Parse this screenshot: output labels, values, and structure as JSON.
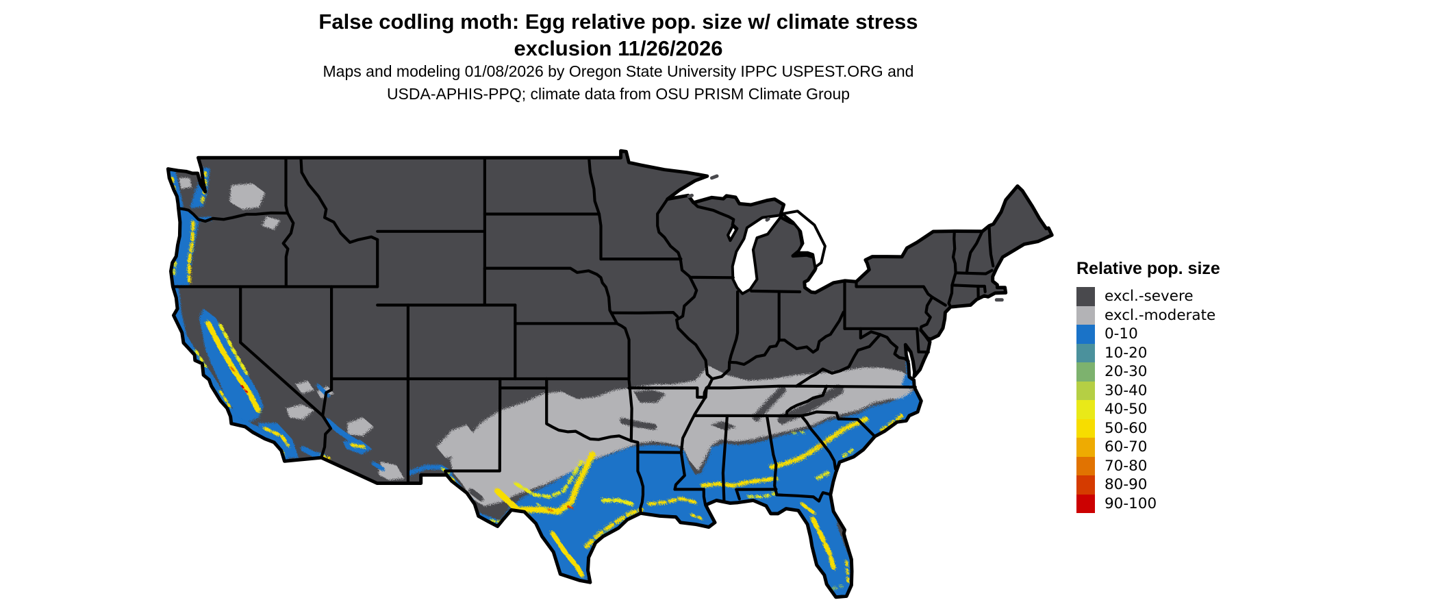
{
  "header": {
    "title_line1": "False codling moth: Egg relative pop. size w/ climate stress",
    "title_line2": "exclusion 11/26/2026",
    "subtitle_line1": "Maps and modeling 01/08/2026 by Oregon State University IPPC USPEST.ORG and",
    "subtitle_line2": "USDA-APHIS-PPQ; climate data from OSU PRISM Climate Group"
  },
  "map": {
    "region_label": "Contiguous United States relative population size map"
  },
  "legend": {
    "title": "Relative pop. size",
    "items": [
      {
        "label": "excl.-severe",
        "color": "#49494d"
      },
      {
        "label": "excl.-moderate",
        "color": "#b3b3b6"
      },
      {
        "label": "0-10",
        "color": "#1a73c8"
      },
      {
        "label": "10-20",
        "color": "#4b919c"
      },
      {
        "label": "20-30",
        "color": "#7db26e"
      },
      {
        "label": "30-40",
        "color": "#b5cf44"
      },
      {
        "label": "40-50",
        "color": "#e9e918"
      },
      {
        "label": "50-60",
        "color": "#f7dd00"
      },
      {
        "label": "60-70",
        "color": "#eeab02"
      },
      {
        "label": "70-80",
        "color": "#e17301"
      },
      {
        "label": "80-90",
        "color": "#d53b00"
      },
      {
        "label": "90-100",
        "color": "#cc0101"
      }
    ]
  }
}
